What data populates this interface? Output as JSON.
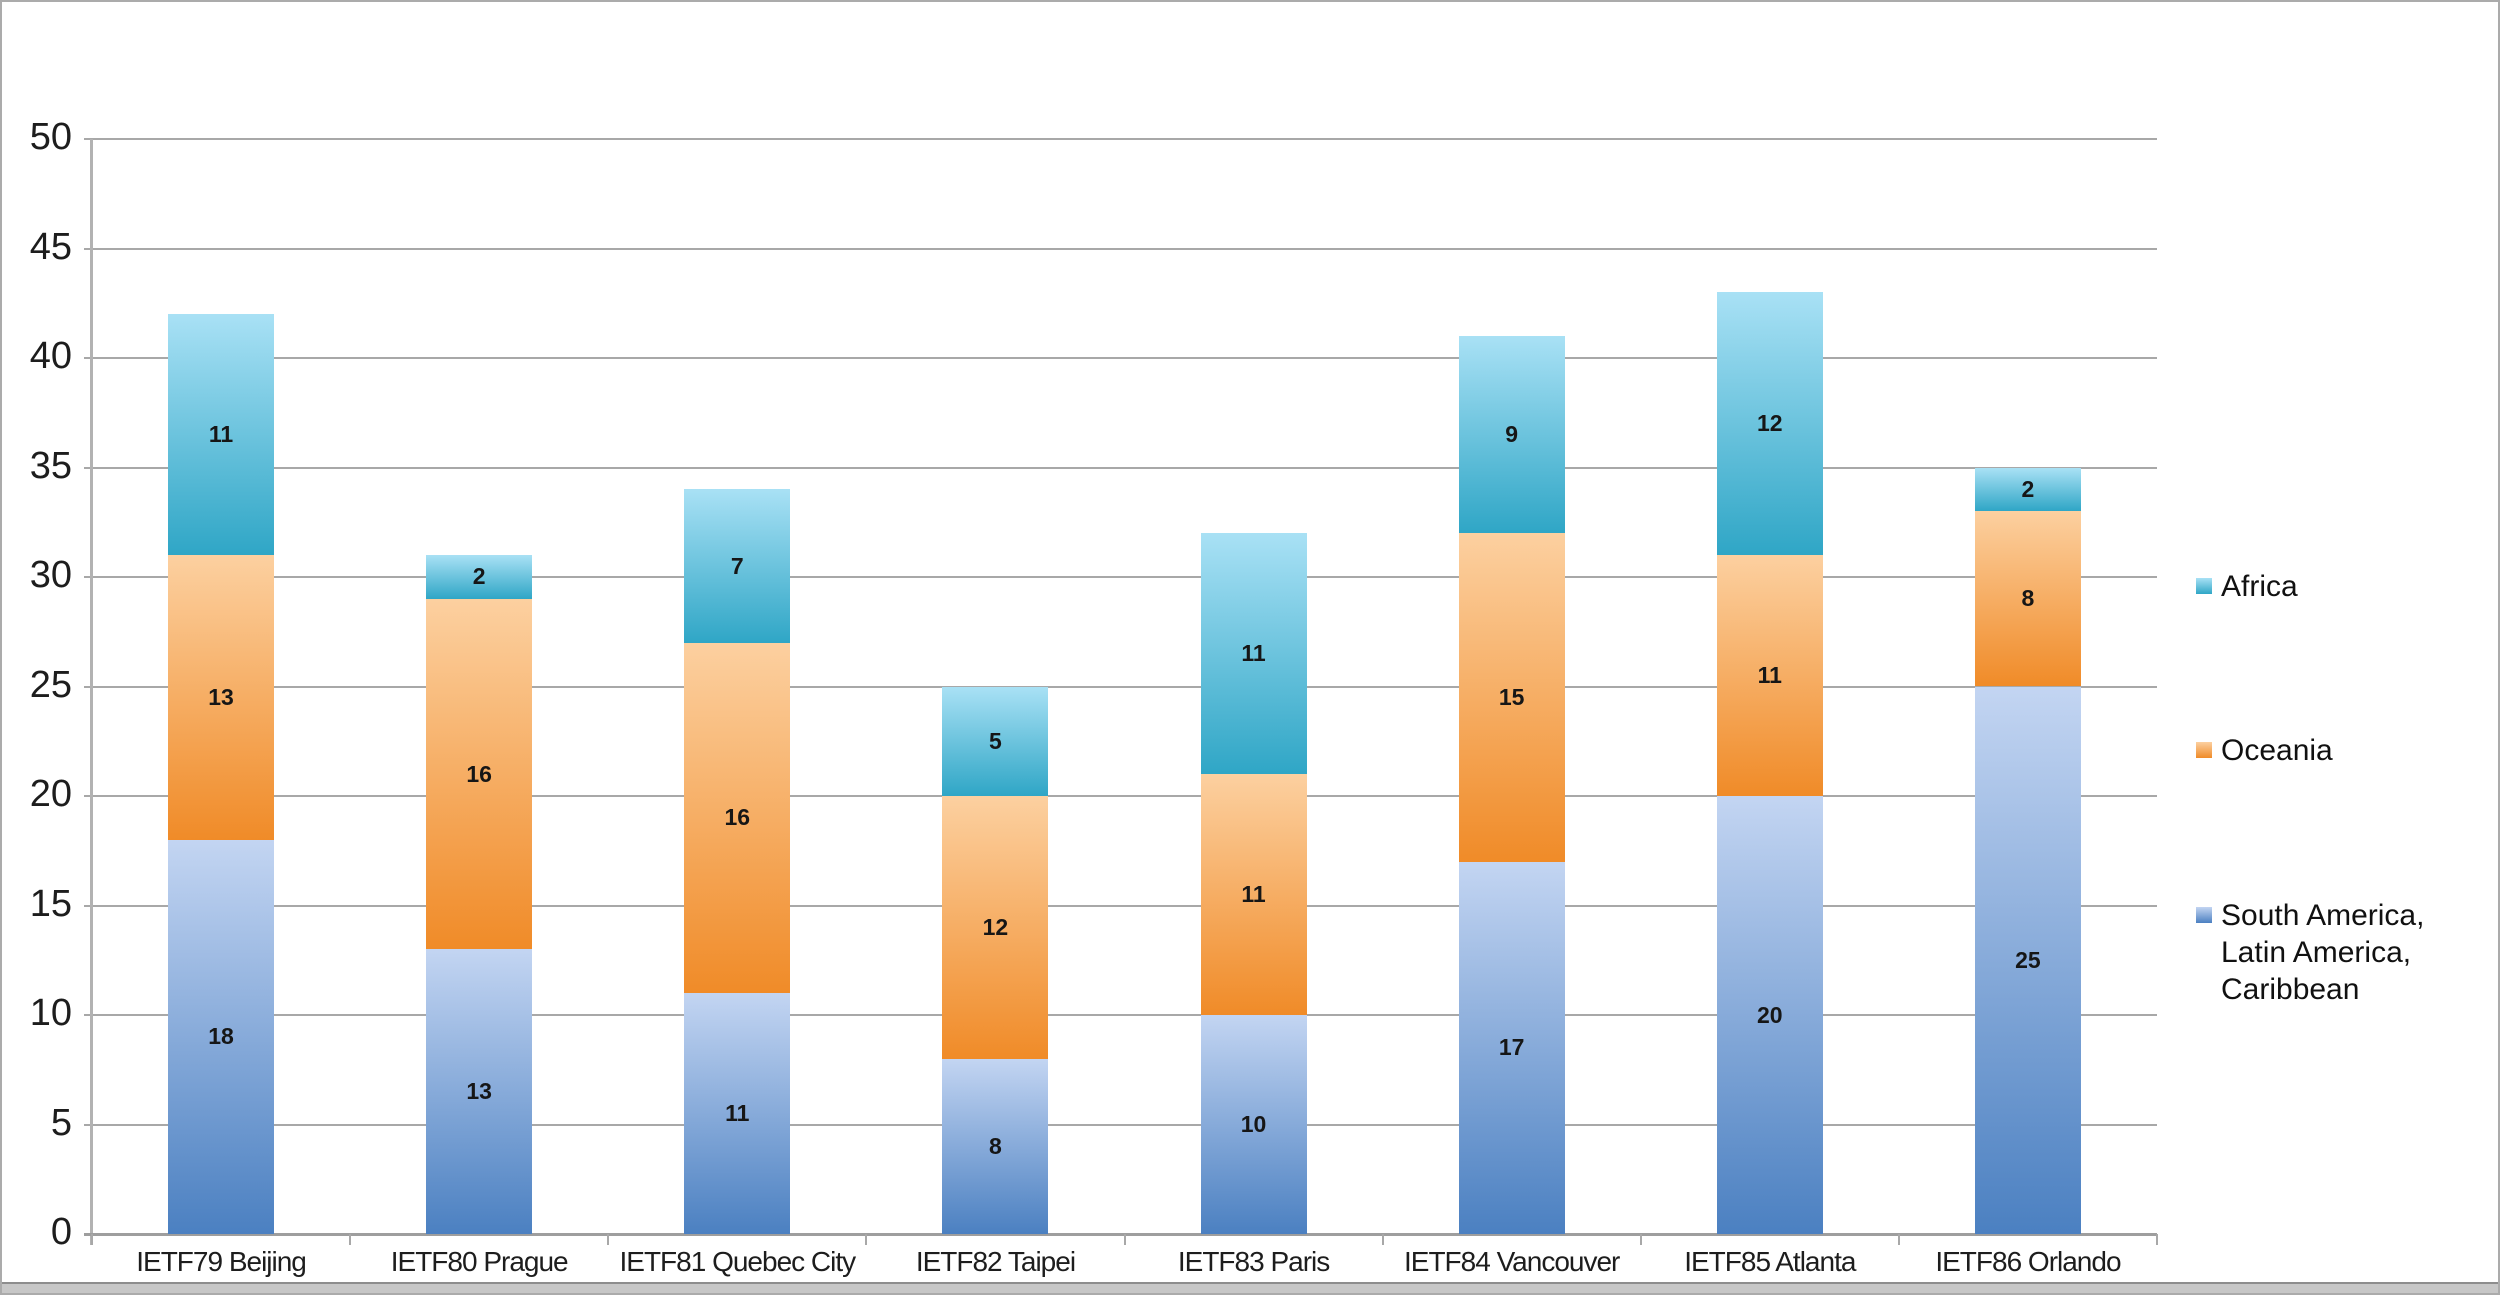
{
  "chart_data": {
    "type": "bar",
    "stacked": true,
    "title": "",
    "categories": [
      "IETF79 Beijing",
      "IETF80 Prague",
      "IETF81 Quebec City",
      "IETF82 Taipei",
      "IETF83 Paris",
      "IETF84 Vancouver",
      "IETF85 Atlanta",
      "IETF86 Orlando"
    ],
    "series": [
      {
        "name": "South America, Latin America, Caribbean",
        "values": [
          18,
          13,
          11,
          8,
          10,
          17,
          20,
          25
        ],
        "color_top": "#c3d5f2",
        "color_bottom": "#4b80c1"
      },
      {
        "name": "Oceania",
        "values": [
          13,
          16,
          16,
          12,
          11,
          15,
          11,
          8
        ],
        "color_top": "#fcd0a0",
        "color_bottom": "#f08b28"
      },
      {
        "name": "Africa",
        "values": [
          11,
          2,
          7,
          5,
          11,
          9,
          12,
          2
        ],
        "color_top": "#a9e1f5",
        "color_bottom": "#2fa6c6"
      }
    ],
    "totals": [
      42,
      31,
      34,
      25,
      32,
      41,
      43,
      35
    ],
    "ylim": [
      0,
      50
    ],
    "ytick_step": 5,
    "grid": true,
    "value_labels": true,
    "legend_position": "right"
  },
  "axes": {
    "y_tick_labels": [
      "0",
      "5",
      "10",
      "15",
      "20",
      "25",
      "30",
      "35",
      "40",
      "45",
      "50"
    ],
    "grid_color": "#a8a8a8",
    "text_color": "#1d1d1d"
  },
  "legend": {
    "items": [
      {
        "label": "Africa",
        "swatch_top": "#a9e1f5",
        "swatch_bottom": "#2fa6c6"
      },
      {
        "label": "Oceania",
        "swatch_top": "#fcd0a0",
        "swatch_bottom": "#f08b28"
      },
      {
        "label": "South America,\nLatin America,\nCaribbean",
        "swatch_top": "#c3d5f2",
        "swatch_bottom": "#4b80c1"
      }
    ]
  }
}
